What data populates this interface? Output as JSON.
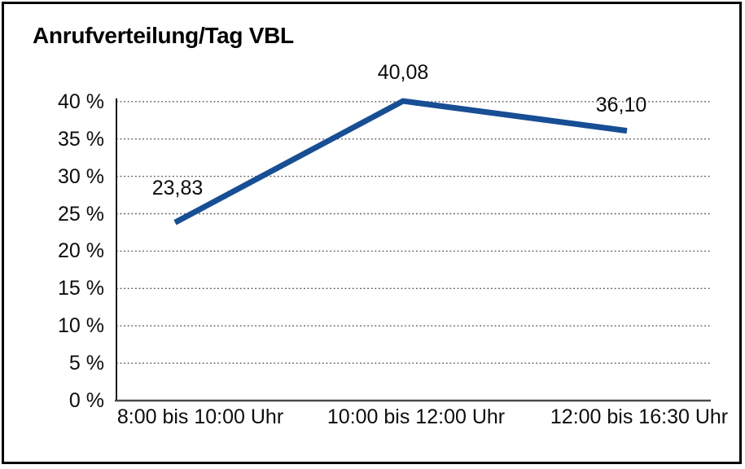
{
  "chart": {
    "title": "Anrufverteilung/Tag VBL"
  },
  "chart_data": {
    "type": "line",
    "title": "Anrufverteilung/Tag VBL",
    "categories": [
      "8:00 bis 10:00 Uhr",
      "10:00 bis 12:00 Uhr",
      "12:00 bis 16:30 Uhr"
    ],
    "values": [
      23.83,
      40.08,
      36.1
    ],
    "data_labels": [
      "23,83",
      "40,08",
      "36,10"
    ],
    "xlabel": "",
    "ylabel": "",
    "ylim": [
      0,
      40
    ],
    "ytick_step": 5,
    "ytick_labels": [
      "0 %",
      "5 %",
      "10 %",
      "15 %",
      "20 %",
      "25 %",
      "30 %",
      "35 %",
      "40 %"
    ],
    "grid": "horizontal-dotted",
    "legend": "none",
    "colors": {
      "line": "#174e94",
      "gridline": "#5a5a5a",
      "y_axis": "#1a1a1a",
      "x_axis": "#4a4a4a",
      "text": "#0d0d0d",
      "frame_border": "#000000",
      "background": "#ffffff"
    }
  }
}
